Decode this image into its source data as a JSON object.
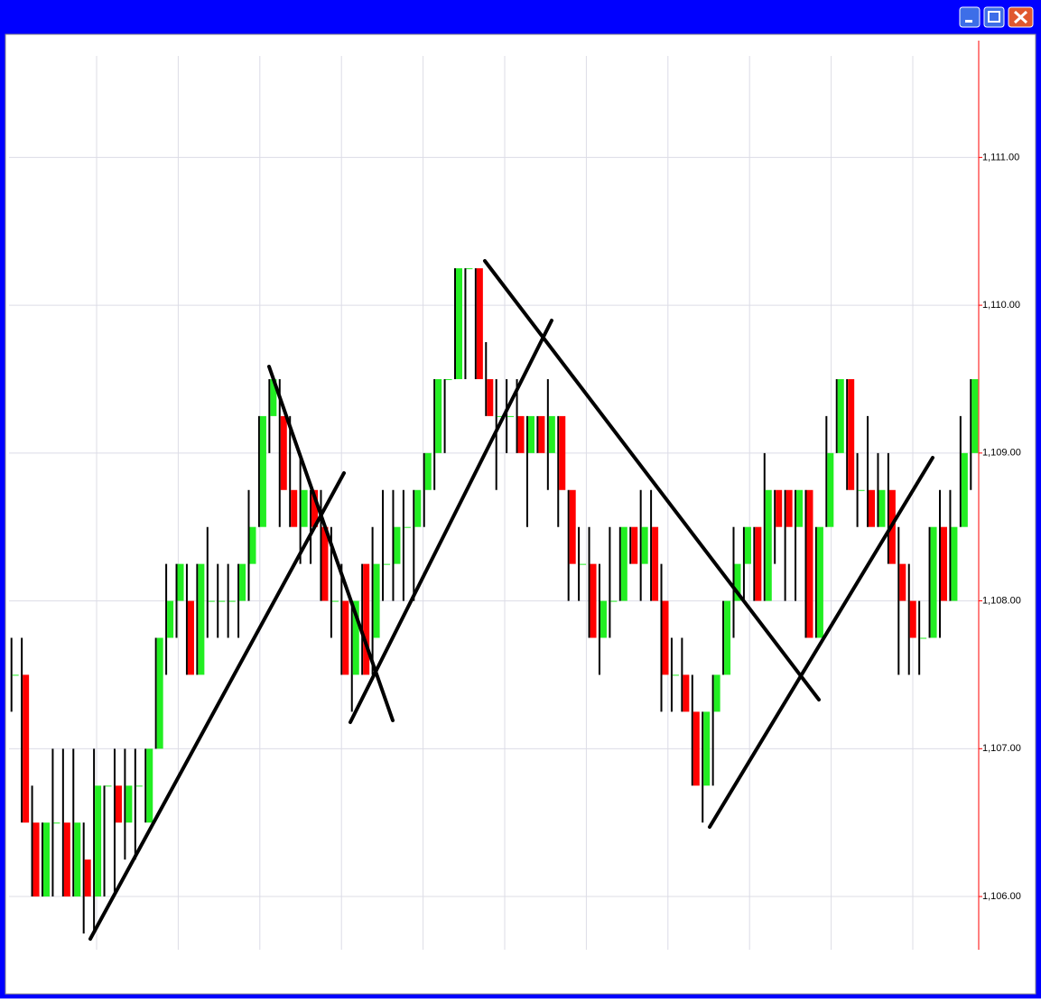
{
  "chart_data": {
    "type": "candlestick",
    "open": [
      1107.5,
      1107.5,
      1106.5,
      1106.0,
      1106.5,
      1106.5,
      1106.0,
      1106.25,
      1106.0,
      1106.75,
      1106.75,
      1106.5,
      1106.75,
      1106.5,
      1107.0,
      1107.75,
      1108.0,
      1108.0,
      1107.5,
      1108.0,
      1108.0,
      1108.0,
      1108.0,
      1108.25,
      1108.5,
      1109.25,
      1109.25,
      1108.75,
      1108.5,
      1108.75,
      1108.5,
      1108.0,
      1108.0,
      1107.5,
      1108.25,
      1107.75,
      1108.25,
      1108.25,
      1108.5,
      1108.5,
      1108.75,
      1109.0,
      1109.5,
      1109.5,
      1110.25,
      1110.25,
      1109.5,
      1109.25,
      1109.25,
      1109.25,
      1109.0,
      1109.25,
      1109.0,
      1109.25,
      1108.75,
      1108.25,
      1108.25,
      1107.75,
      1108.0,
      1108.0,
      1108.5,
      1108.25,
      1108.5,
      1108.0,
      1107.5,
      1107.5,
      1107.25,
      1106.75,
      1107.25,
      1107.5,
      1108.0,
      1108.25,
      1108.5,
      1108.0,
      1108.75,
      1108.75,
      1108.5,
      1108.75,
      1107.75,
      1108.5,
      1109.0,
      1109.5,
      1108.75,
      1108.75,
      1108.5,
      1108.75,
      1108.25,
      1108.0,
      1107.75,
      1107.75,
      1108.5,
      1108.0,
      1108.5,
      1109.0
    ],
    "high": [
      1107.75,
      1107.75,
      1106.75,
      1106.5,
      1107.0,
      1107.0,
      1107.0,
      1106.5,
      1107.0,
      1106.75,
      1107.0,
      1107.0,
      1107.0,
      1107.0,
      1107.75,
      1108.25,
      1108.25,
      1108.25,
      1108.25,
      1108.5,
      1108.25,
      1108.25,
      1108.25,
      1108.75,
      1109.25,
      1109.5,
      1109.5,
      1109.25,
      1109.0,
      1108.75,
      1108.75,
      1108.5,
      1108.25,
      1108.0,
      1108.25,
      1108.5,
      1108.75,
      1108.75,
      1108.75,
      1108.75,
      1109.0,
      1109.5,
      1109.5,
      1110.25,
      1110.25,
      1110.25,
      1109.75,
      1109.5,
      1109.5,
      1109.5,
      1109.25,
      1109.25,
      1109.5,
      1109.25,
      1108.75,
      1108.5,
      1108.5,
      1108.25,
      1108.5,
      1108.5,
      1108.5,
      1108.75,
      1108.75,
      1108.25,
      1107.75,
      1107.75,
      1107.5,
      1107.25,
      1107.5,
      1108.0,
      1108.5,
      1108.5,
      1108.5,
      1109.0,
      1108.75,
      1108.75,
      1108.75,
      1108.75,
      1108.5,
      1109.25,
      1109.5,
      1109.5,
      1109.0,
      1109.25,
      1109.0,
      1109.0,
      1108.5,
      1108.25,
      1108.0,
      1108.5,
      1108.75,
      1108.75,
      1109.25,
      1109.5
    ],
    "low": [
      1107.25,
      1106.5,
      1106.0,
      1106.0,
      1106.0,
      1106.0,
      1106.0,
      1105.75,
      1105.75,
      1106.0,
      1106.0,
      1106.25,
      1106.25,
      1106.5,
      1107.0,
      1107.5,
      1107.75,
      1107.5,
      1107.5,
      1107.75,
      1107.75,
      1107.75,
      1107.75,
      1108.0,
      1108.5,
      1109.0,
      1108.5,
      1108.5,
      1108.25,
      1108.25,
      1108.0,
      1107.75,
      1107.5,
      1107.25,
      1107.5,
      1107.5,
      1108.0,
      1108.0,
      1108.0,
      1108.0,
      1108.5,
      1108.75,
      1109.0,
      1109.5,
      1109.5,
      1109.5,
      1109.25,
      1108.75,
      1109.0,
      1109.0,
      1108.5,
      1109.0,
      1108.75,
      1108.5,
      1108.0,
      1108.0,
      1107.75,
      1107.5,
      1107.75,
      1108.0,
      1108.25,
      1108.0,
      1108.0,
      1107.25,
      1107.25,
      1107.25,
      1106.75,
      1106.5,
      1106.75,
      1107.5,
      1107.75,
      1108.0,
      1108.0,
      1108.0,
      1108.25,
      1108.0,
      1108.0,
      1107.75,
      1107.75,
      1108.5,
      1109.0,
      1108.75,
      1108.5,
      1108.5,
      1108.5,
      1108.25,
      1107.5,
      1107.5,
      1107.5,
      1107.75,
      1107.75,
      1108.0,
      1108.5,
      1108.75
    ],
    "close": [
      1107.5,
      1106.5,
      1106.0,
      1106.5,
      1106.5,
      1106.0,
      1106.5,
      1106.0,
      1106.75,
      1106.75,
      1106.5,
      1106.75,
      1106.75,
      1107.0,
      1107.75,
      1108.0,
      1108.25,
      1107.5,
      1108.25,
      1108.0,
      1108.0,
      1108.0,
      1108.25,
      1108.5,
      1109.25,
      1109.5,
      1108.75,
      1108.5,
      1108.75,
      1108.5,
      1108.0,
      1108.0,
      1107.5,
      1108.0,
      1107.5,
      1108.25,
      1108.25,
      1108.5,
      1108.5,
      1108.75,
      1109.0,
      1109.5,
      1109.5,
      1110.25,
      1110.25,
      1109.5,
      1109.25,
      1109.25,
      1109.25,
      1109.0,
      1109.25,
      1109.0,
      1109.25,
      1108.75,
      1108.25,
      1108.25,
      1107.75,
      1108.0,
      1108.0,
      1108.5,
      1108.25,
      1108.5,
      1108.0,
      1107.5,
      1107.5,
      1107.25,
      1106.75,
      1107.25,
      1107.5,
      1108.0,
      1108.25,
      1108.5,
      1108.0,
      1108.75,
      1108.5,
      1108.5,
      1108.75,
      1107.75,
      1108.5,
      1109.0,
      1109.5,
      1108.75,
      1108.75,
      1108.5,
      1108.75,
      1108.25,
      1108.0,
      1107.75,
      1107.75,
      1108.5,
      1108.0,
      1108.5,
      1109.0,
      1109.5
    ],
    "up_color": "#22ee22",
    "down_color": "#ff0000",
    "wick_color": "#000000",
    "axis_color": "#ff0000",
    "ylim": [
      1105.64,
      1111.79
    ],
    "yticks": [
      {
        "value": 1106,
        "label": "1,106.00"
      },
      {
        "value": 1107,
        "label": "1,107.00"
      },
      {
        "value": 1108,
        "label": "1,108.00"
      },
      {
        "value": 1109,
        "label": "1,109.00"
      },
      {
        "value": 1110,
        "label": "1,110.00"
      },
      {
        "value": 1111,
        "label": "1,111.00"
      }
    ],
    "grid": true
  }
}
